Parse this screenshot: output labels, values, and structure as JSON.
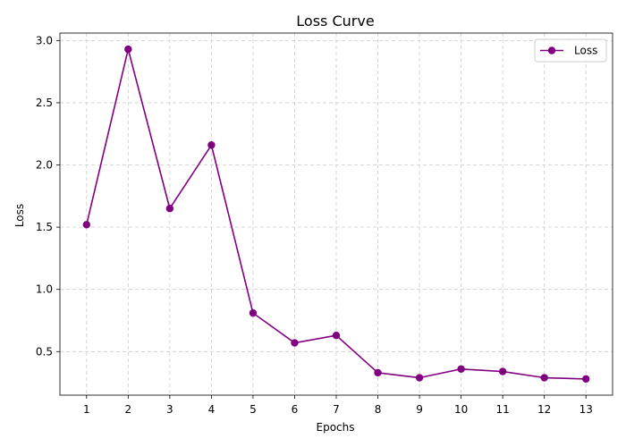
{
  "chart_data": {
    "type": "line",
    "title": "Loss Curve",
    "xlabel": "Epochs",
    "ylabel": "Loss",
    "x": [
      1,
      2,
      3,
      4,
      5,
      6,
      7,
      8,
      9,
      10,
      11,
      12,
      13
    ],
    "series": [
      {
        "name": "Loss",
        "color": "#800080",
        "marker": "circle",
        "values": [
          1.52,
          2.93,
          1.65,
          2.16,
          0.81,
          0.57,
          0.63,
          0.33,
          0.29,
          0.36,
          0.34,
          0.29,
          0.28
        ]
      }
    ],
    "xlim": [
      0.36,
      13.64
    ],
    "ylim": [
      0.15,
      3.06
    ],
    "x_ticks": [
      "1",
      "2",
      "3",
      "4",
      "5",
      "6",
      "7",
      "8",
      "9",
      "10",
      "11",
      "12",
      "13"
    ],
    "y_ticks": [
      "0.5",
      "1.0",
      "1.5",
      "2.0",
      "2.5",
      "3.0"
    ],
    "grid": true,
    "grid_style": "dashed",
    "legend_position": "upper-right"
  }
}
